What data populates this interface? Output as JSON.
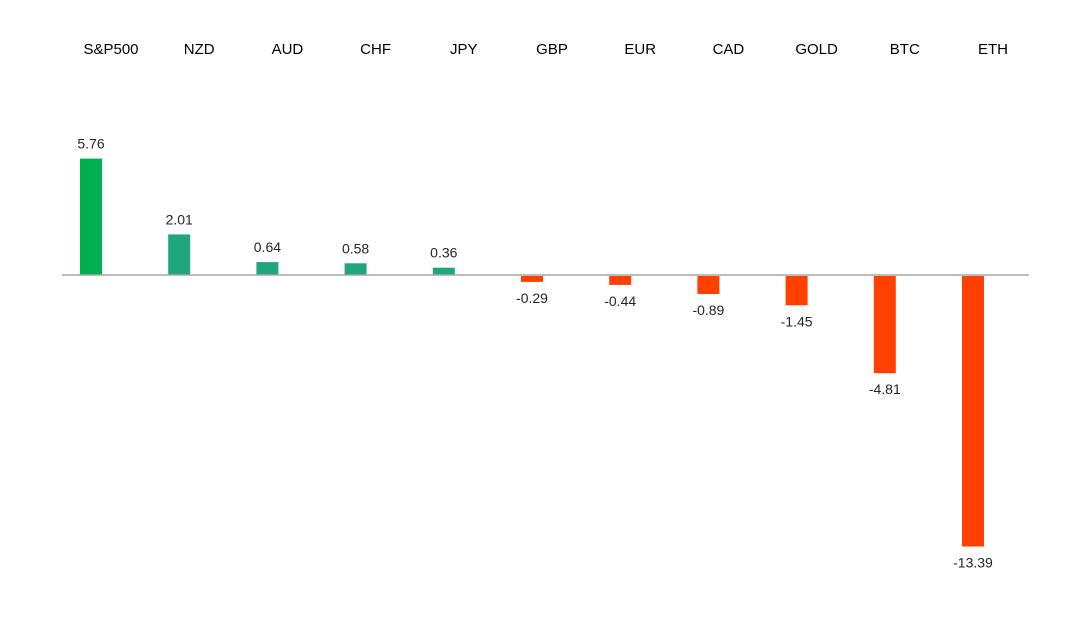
{
  "chart_data": {
    "type": "bar",
    "categories": [
      "S&P500",
      "NZD",
      "AUD",
      "CHF",
      "JPY",
      "GBP",
      "EUR",
      "CAD",
      "GOLD",
      "BTC",
      "ETH"
    ],
    "values": [
      5.76,
      2.01,
      0.64,
      0.58,
      0.36,
      -0.29,
      -0.44,
      -0.89,
      -1.45,
      -4.81,
      -13.39
    ],
    "value_labels": [
      "5.76",
      "2.01",
      "0.64",
      "0.58",
      "0.36",
      "-0.29",
      "-0.44",
      "-0.89",
      "-1.45",
      "-4.81",
      "-13.39"
    ],
    "ylim": [
      -13.39,
      5.76
    ],
    "grid": false,
    "legend": "none",
    "category_labels_position": "top",
    "colors": {
      "positive_strong": "#00b050",
      "positive": "#1fa67f",
      "negative": "#ff4000",
      "baseline": "#a6a6a6",
      "text": "#262626"
    }
  }
}
